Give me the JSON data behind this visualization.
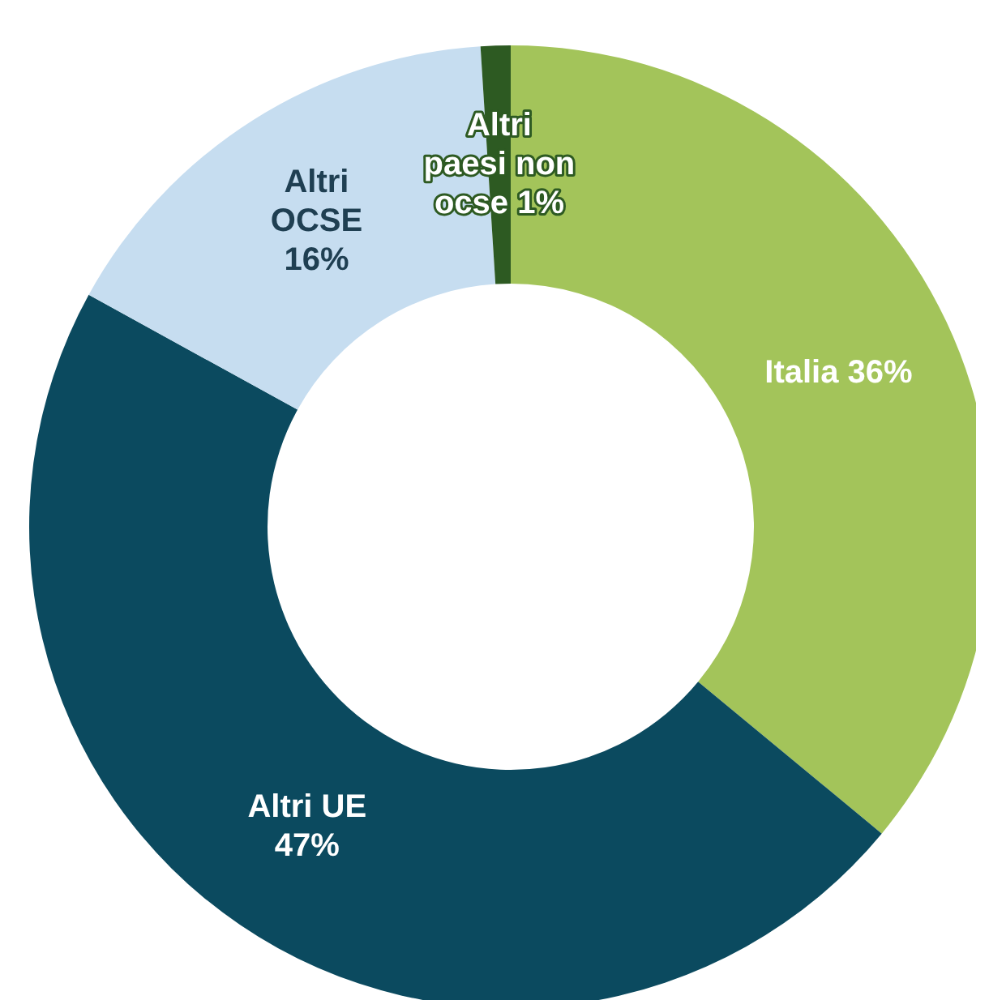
{
  "chart_data": {
    "type": "donut",
    "categories": [
      "Italia",
      "Altri UE",
      "Altri OCSE",
      "Altri paesi non ocse"
    ],
    "values": [
      36,
      47,
      16,
      1
    ],
    "value_labels": [
      "36%",
      "47%",
      "16%",
      "1%"
    ],
    "colors": [
      "#a3c45a",
      "#0b4a5f",
      "#c6ddf0",
      "#2d5a22"
    ],
    "legend": false
  }
}
